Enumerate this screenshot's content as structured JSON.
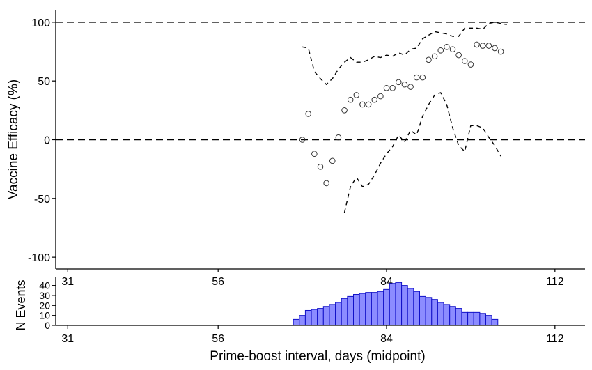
{
  "chart_data": [
    {
      "type": "scatter",
      "ylabel": "Vaccine Efficacy (%)",
      "xlim": [
        29,
        117
      ],
      "ylim": [
        -110,
        110
      ],
      "yticks": [
        100,
        50,
        0,
        -50,
        -100
      ],
      "xticks": [
        31,
        56,
        84,
        112
      ],
      "reference_lines": [
        100,
        0
      ],
      "grid": false,
      "series": [
        {
          "style": "points",
          "x": [
            70,
            71,
            72,
            73,
            74,
            75,
            76,
            77,
            78,
            79,
            80,
            81,
            82,
            83,
            84,
            85,
            86,
            87,
            88,
            89,
            90,
            91,
            92,
            93,
            94,
            95,
            96,
            97,
            98,
            99,
            100,
            101,
            102,
            103
          ],
          "y": [
            0,
            22,
            -12,
            -23,
            -37,
            -18,
            2,
            25,
            34,
            38,
            30,
            30,
            34,
            37,
            44,
            44,
            49,
            47,
            45,
            53,
            53,
            68,
            71,
            76,
            79,
            77,
            72,
            67,
            64,
            81,
            80,
            80,
            78,
            75
          ]
        },
        {
          "style": "dashed",
          "x": [
            70,
            71,
            72,
            73,
            74,
            75,
            76,
            77,
            78,
            79,
            80,
            81,
            82,
            83,
            84,
            85,
            86,
            87,
            88,
            89,
            90,
            91,
            92,
            93,
            94,
            95,
            96,
            97,
            98,
            99,
            100,
            101,
            102,
            103,
            104
          ],
          "y": [
            79,
            78,
            58,
            52,
            47,
            52,
            60,
            66,
            70,
            66,
            66,
            68,
            71,
            70,
            72,
            71,
            74,
            72,
            77,
            78,
            86,
            89,
            92,
            91,
            90,
            88,
            88,
            95,
            95,
            95,
            94,
            99,
            100,
            99,
            98
          ]
        },
        {
          "style": "dashed",
          "x": [
            77,
            78,
            79,
            80,
            81,
            82,
            83,
            84,
            85,
            86,
            87,
            88,
            89,
            90,
            91,
            92,
            93,
            94,
            95,
            96,
            97,
            98,
            99,
            100,
            101,
            102,
            103
          ],
          "y": [
            -62,
            -40,
            -32,
            -40,
            -38,
            -30,
            -20,
            -12,
            -6,
            4,
            -2,
            8,
            4,
            20,
            30,
            38,
            40,
            30,
            10,
            -5,
            -10,
            12,
            12,
            10,
            2,
            -5,
            -14
          ]
        }
      ]
    },
    {
      "type": "bar",
      "ylabel": "N Events",
      "xlabel": "Prime-boost interval, days (midpoint)",
      "xlim": [
        29,
        117
      ],
      "ylim": [
        0,
        46
      ],
      "yticks": [
        0,
        10,
        20,
        30,
        40
      ],
      "xticks": [
        31,
        56,
        84,
        112
      ],
      "fill": "#8c8cff",
      "edge": "#1010c8",
      "x": [
        69,
        70,
        71,
        72,
        73,
        74,
        75,
        76,
        77,
        78,
        79,
        80,
        81,
        82,
        83,
        84,
        85,
        86,
        87,
        88,
        89,
        90,
        91,
        92,
        93,
        94,
        95,
        96,
        97,
        98,
        99,
        100,
        101,
        102,
        103
      ],
      "values": [
        6,
        10,
        15,
        16,
        17,
        19,
        21,
        23,
        27,
        29,
        31,
        32,
        33,
        33,
        34,
        36,
        42,
        43,
        40,
        37,
        34,
        29,
        28,
        26,
        23,
        21,
        19,
        17,
        13,
        13,
        13,
        12,
        10,
        6,
        0
      ]
    }
  ]
}
